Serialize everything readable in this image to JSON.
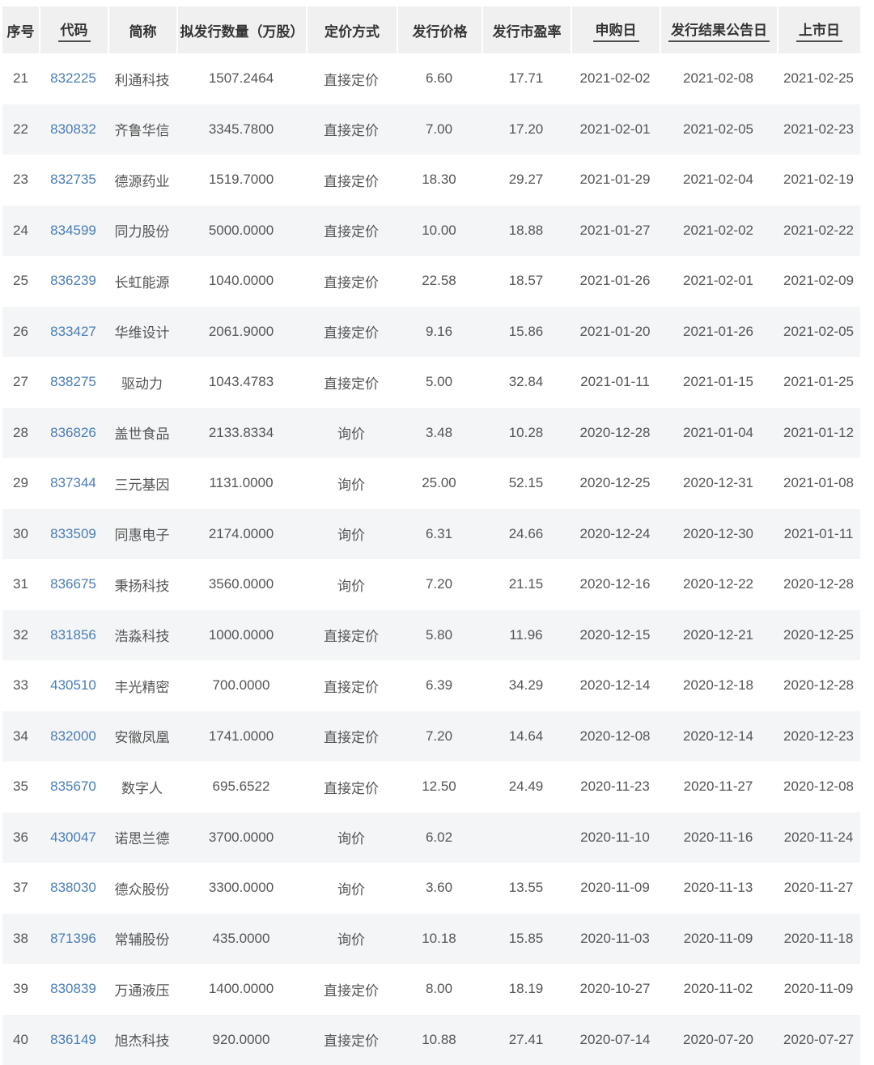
{
  "colors": {
    "link": "#4a7eb5",
    "header_bg": "#f0f0f0",
    "stripe_bg": "#f4f5f7",
    "text": "#555555",
    "header_text": "#333333"
  },
  "table": {
    "columns": [
      {
        "key": "seq",
        "label": "序号",
        "sortable": false
      },
      {
        "key": "code",
        "label": "代码",
        "sortable": true
      },
      {
        "key": "name",
        "label": "简称",
        "sortable": false
      },
      {
        "key": "quantity",
        "label": "拟发行数量（万股）",
        "sortable": false
      },
      {
        "key": "pricing_method",
        "label": "定价方式",
        "sortable": false
      },
      {
        "key": "price",
        "label": "发行价格",
        "sortable": false
      },
      {
        "key": "pe_ratio",
        "label": "发行市盈率",
        "sortable": false
      },
      {
        "key": "subscription_date",
        "label": "申购日",
        "sortable": true
      },
      {
        "key": "announcement_date",
        "label": "发行结果公告日",
        "sortable": true
      },
      {
        "key": "listing_date",
        "label": "上市日",
        "sortable": true
      }
    ],
    "rows": [
      {
        "seq": "21",
        "code": "832225",
        "name": "利通科技",
        "quantity": "1507.2464",
        "pricing_method": "直接定价",
        "price": "6.60",
        "pe_ratio": "17.71",
        "subscription_date": "2021-02-02",
        "announcement_date": "2021-02-08",
        "listing_date": "2021-02-25"
      },
      {
        "seq": "22",
        "code": "830832",
        "name": "齐鲁华信",
        "quantity": "3345.7800",
        "pricing_method": "直接定价",
        "price": "7.00",
        "pe_ratio": "17.20",
        "subscription_date": "2021-02-01",
        "announcement_date": "2021-02-05",
        "listing_date": "2021-02-23"
      },
      {
        "seq": "23",
        "code": "832735",
        "name": "德源药业",
        "quantity": "1519.7000",
        "pricing_method": "直接定价",
        "price": "18.30",
        "pe_ratio": "29.27",
        "subscription_date": "2021-01-29",
        "announcement_date": "2021-02-04",
        "listing_date": "2021-02-19"
      },
      {
        "seq": "24",
        "code": "834599",
        "name": "同力股份",
        "quantity": "5000.0000",
        "pricing_method": "直接定价",
        "price": "10.00",
        "pe_ratio": "18.88",
        "subscription_date": "2021-01-27",
        "announcement_date": "2021-02-02",
        "listing_date": "2021-02-22"
      },
      {
        "seq": "25",
        "code": "836239",
        "name": "长虹能源",
        "quantity": "1040.0000",
        "pricing_method": "直接定价",
        "price": "22.58",
        "pe_ratio": "18.57",
        "subscription_date": "2021-01-26",
        "announcement_date": "2021-02-01",
        "listing_date": "2021-02-09"
      },
      {
        "seq": "26",
        "code": "833427",
        "name": "华维设计",
        "quantity": "2061.9000",
        "pricing_method": "直接定价",
        "price": "9.16",
        "pe_ratio": "15.86",
        "subscription_date": "2021-01-20",
        "announcement_date": "2021-01-26",
        "listing_date": "2021-02-05"
      },
      {
        "seq": "27",
        "code": "838275",
        "name": "驱动力",
        "quantity": "1043.4783",
        "pricing_method": "直接定价",
        "price": "5.00",
        "pe_ratio": "32.84",
        "subscription_date": "2021-01-11",
        "announcement_date": "2021-01-15",
        "listing_date": "2021-01-25"
      },
      {
        "seq": "28",
        "code": "836826",
        "name": "盖世食品",
        "quantity": "2133.8334",
        "pricing_method": "询价",
        "price": "3.48",
        "pe_ratio": "10.28",
        "subscription_date": "2020-12-28",
        "announcement_date": "2021-01-04",
        "listing_date": "2021-01-12"
      },
      {
        "seq": "29",
        "code": "837344",
        "name": "三元基因",
        "quantity": "1131.0000",
        "pricing_method": "询价",
        "price": "25.00",
        "pe_ratio": "52.15",
        "subscription_date": "2020-12-25",
        "announcement_date": "2020-12-31",
        "listing_date": "2021-01-08"
      },
      {
        "seq": "30",
        "code": "833509",
        "name": "同惠电子",
        "quantity": "2174.0000",
        "pricing_method": "询价",
        "price": "6.31",
        "pe_ratio": "24.66",
        "subscription_date": "2020-12-24",
        "announcement_date": "2020-12-30",
        "listing_date": "2021-01-11"
      },
      {
        "seq": "31",
        "code": "836675",
        "name": "秉扬科技",
        "quantity": "3560.0000",
        "pricing_method": "询价",
        "price": "7.20",
        "pe_ratio": "21.15",
        "subscription_date": "2020-12-16",
        "announcement_date": "2020-12-22",
        "listing_date": "2020-12-28"
      },
      {
        "seq": "32",
        "code": "831856",
        "name": "浩淼科技",
        "quantity": "1000.0000",
        "pricing_method": "直接定价",
        "price": "5.80",
        "pe_ratio": "11.96",
        "subscription_date": "2020-12-15",
        "announcement_date": "2020-12-21",
        "listing_date": "2020-12-25"
      },
      {
        "seq": "33",
        "code": "430510",
        "name": "丰光精密",
        "quantity": "700.0000",
        "pricing_method": "直接定价",
        "price": "6.39",
        "pe_ratio": "34.29",
        "subscription_date": "2020-12-14",
        "announcement_date": "2020-12-18",
        "listing_date": "2020-12-28"
      },
      {
        "seq": "34",
        "code": "832000",
        "name": "安徽凤凰",
        "quantity": "1741.0000",
        "pricing_method": "直接定价",
        "price": "7.20",
        "pe_ratio": "14.64",
        "subscription_date": "2020-12-08",
        "announcement_date": "2020-12-14",
        "listing_date": "2020-12-23"
      },
      {
        "seq": "35",
        "code": "835670",
        "name": "数字人",
        "quantity": "695.6522",
        "pricing_method": "直接定价",
        "price": "12.50",
        "pe_ratio": "24.49",
        "subscription_date": "2020-11-23",
        "announcement_date": "2020-11-27",
        "listing_date": "2020-12-08"
      },
      {
        "seq": "36",
        "code": "430047",
        "name": "诺思兰德",
        "quantity": "3700.0000",
        "pricing_method": "询价",
        "price": "6.02",
        "pe_ratio": "",
        "subscription_date": "2020-11-10",
        "announcement_date": "2020-11-16",
        "listing_date": "2020-11-24"
      },
      {
        "seq": "37",
        "code": "838030",
        "name": "德众股份",
        "quantity": "3300.0000",
        "pricing_method": "询价",
        "price": "3.60",
        "pe_ratio": "13.55",
        "subscription_date": "2020-11-09",
        "announcement_date": "2020-11-13",
        "listing_date": "2020-11-27"
      },
      {
        "seq": "38",
        "code": "871396",
        "name": "常辅股份",
        "quantity": "435.0000",
        "pricing_method": "询价",
        "price": "10.18",
        "pe_ratio": "15.85",
        "subscription_date": "2020-11-03",
        "announcement_date": "2020-11-09",
        "listing_date": "2020-11-18"
      },
      {
        "seq": "39",
        "code": "830839",
        "name": "万通液压",
        "quantity": "1400.0000",
        "pricing_method": "直接定价",
        "price": "8.00",
        "pe_ratio": "18.19",
        "subscription_date": "2020-10-27",
        "announcement_date": "2020-11-02",
        "listing_date": "2020-11-09"
      },
      {
        "seq": "40",
        "code": "836149",
        "name": "旭杰科技",
        "quantity": "920.0000",
        "pricing_method": "直接定价",
        "price": "10.88",
        "pe_ratio": "27.41",
        "subscription_date": "2020-07-14",
        "announcement_date": "2020-07-20",
        "listing_date": "2020-07-27"
      }
    ]
  }
}
